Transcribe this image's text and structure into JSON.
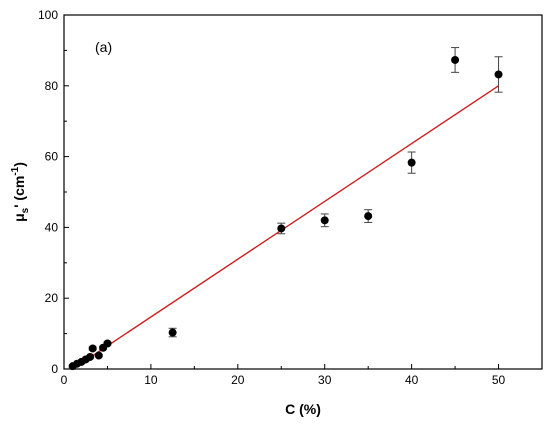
{
  "chart_data": {
    "type": "scatter",
    "panel_label": "(a)",
    "xlabel": "C (%)",
    "ylabel_main": "μ",
    "ylabel_sub": "s",
    "ylabel_rest": "' (cm",
    "ylabel_sup": "-1",
    "ylabel_close": ")",
    "xlim": [
      0,
      55
    ],
    "ylim": [
      0,
      100
    ],
    "xticks": [
      0,
      10,
      20,
      30,
      40,
      50
    ],
    "yticks": [
      0,
      20,
      40,
      60,
      80,
      100
    ],
    "grid": false,
    "point_color": "#000000",
    "fit_color": "#cc1f1f",
    "series": [
      {
        "type": "scatter",
        "points": [
          {
            "x": 1.0,
            "y": 0.8,
            "err": 0.3
          },
          {
            "x": 1.5,
            "y": 1.5,
            "err": 0.3
          },
          {
            "x": 2.0,
            "y": 2.0,
            "err": 0.3
          },
          {
            "x": 2.5,
            "y": 2.7,
            "err": 0.3
          },
          {
            "x": 3.0,
            "y": 3.4,
            "err": 0.3
          },
          {
            "x": 3.3,
            "y": 5.8,
            "err": 0.4
          },
          {
            "x": 4.0,
            "y": 3.8,
            "err": 0.3
          },
          {
            "x": 4.5,
            "y": 6.0,
            "err": 0.4
          },
          {
            "x": 5.0,
            "y": 7.2,
            "err": 0.4
          },
          {
            "x": 12.5,
            "y": 10.3,
            "err": 1.2
          },
          {
            "x": 25.0,
            "y": 39.7,
            "err": 1.5
          },
          {
            "x": 30.0,
            "y": 42.0,
            "err": 1.8
          },
          {
            "x": 35.0,
            "y": 43.2,
            "err": 1.8
          },
          {
            "x": 40.0,
            "y": 58.3,
            "err": 3.0
          },
          {
            "x": 45.0,
            "y": 87.3,
            "err": 3.5
          },
          {
            "x": 50.0,
            "y": 83.2,
            "err": 5.0
          }
        ]
      },
      {
        "type": "line",
        "points": [
          {
            "x": 1.0,
            "y": 0.0
          },
          {
            "x": 50.0,
            "y": 80.0
          }
        ]
      }
    ]
  }
}
